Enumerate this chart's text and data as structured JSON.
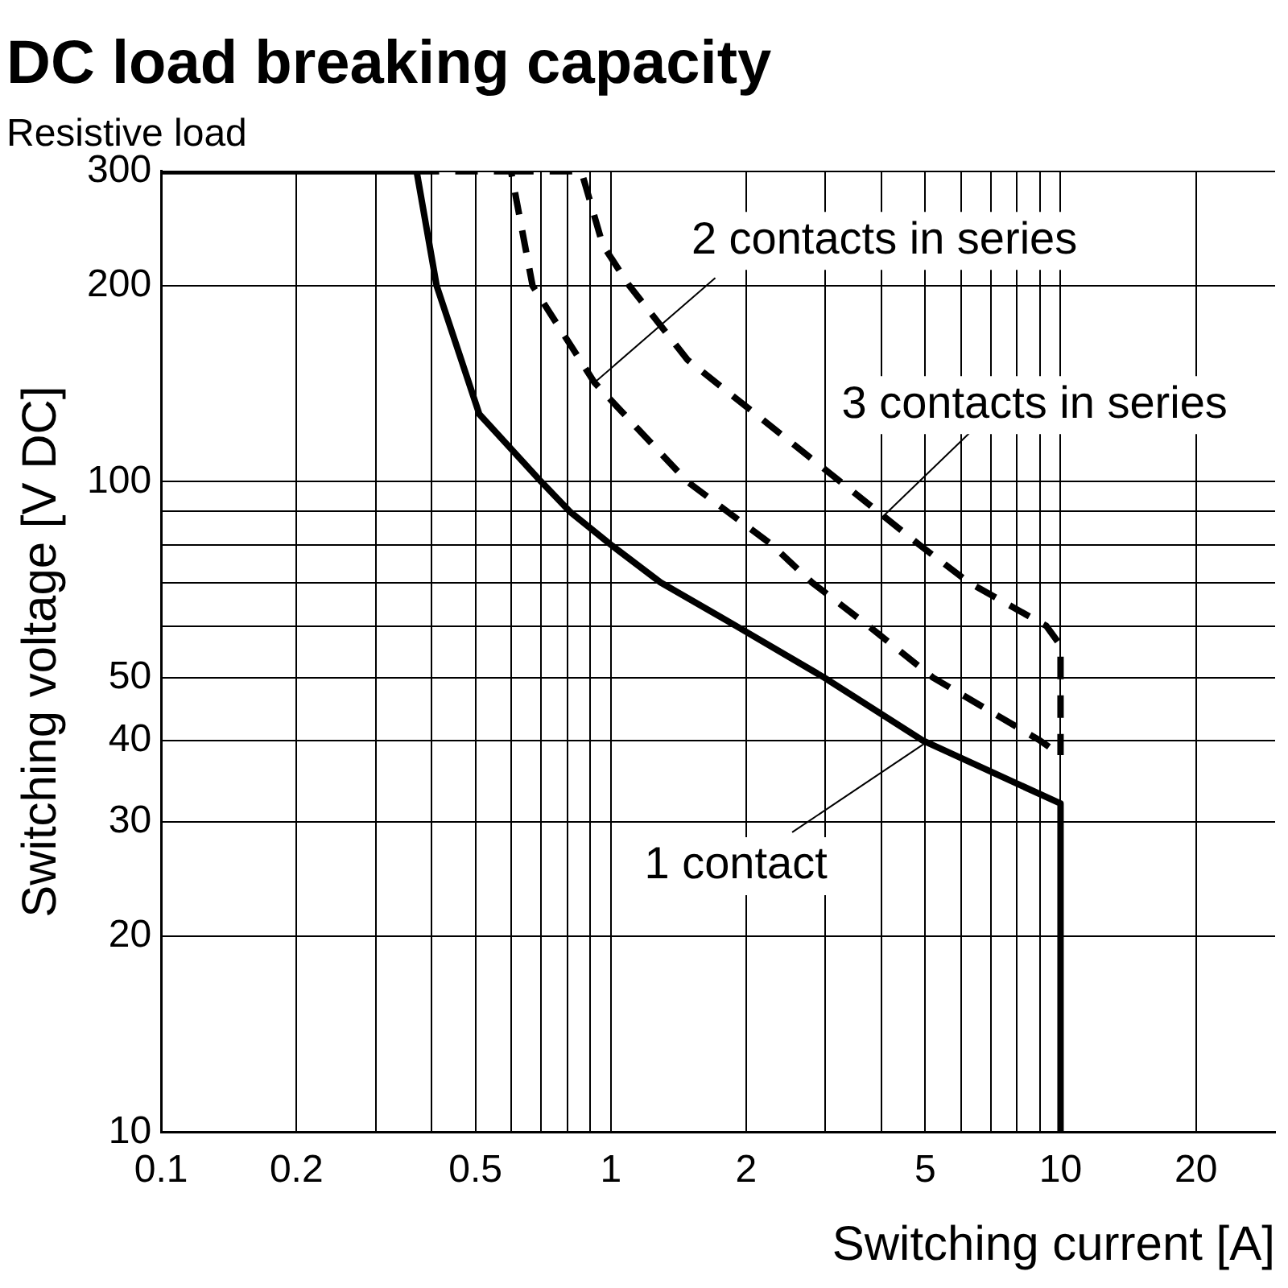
{
  "chart_data": {
    "type": "line",
    "title": "DC load breaking capacity",
    "subtitle": "Resistive load",
    "xlabel": "Switching current [A]",
    "ylabel": "Switching voltage [V DC]",
    "log": "xy",
    "grid": true,
    "legend": false,
    "marker": "none",
    "xlim": [
      0.1,
      30
    ],
    "ylim": [
      10,
      300
    ],
    "xticks": [
      0.1,
      0.2,
      {
        "value": 0.3,
        "label": null
      },
      {
        "value": 0.4,
        "label": null
      },
      0.5,
      {
        "value": 0.6,
        "label": null
      },
      {
        "value": 0.7,
        "label": null
      },
      {
        "value": 0.8,
        "label": null
      },
      {
        "value": 0.9,
        "label": null
      },
      1,
      2,
      {
        "value": 3,
        "label": null
      },
      {
        "value": 4,
        "label": null
      },
      5,
      {
        "value": 6,
        "label": null
      },
      {
        "value": 7,
        "label": null
      },
      {
        "value": 8,
        "label": null
      },
      {
        "value": 9,
        "label": null
      },
      10,
      20
    ],
    "yticks": [
      10,
      20,
      30,
      40,
      50,
      {
        "value": 60,
        "label": null
      },
      {
        "value": 70,
        "label": null
      },
      {
        "value": 80,
        "label": null
      },
      {
        "value": 90,
        "label": null
      },
      100,
      200,
      300
    ],
    "series": [
      {
        "line_style": "solid",
        "color": "#000000",
        "x": [
          0.1,
          0.37,
          0.41,
          0.51,
          0.7,
          0.81,
          1.0,
          1.29,
          1.9,
          2.98,
          4.94,
          10,
          10
        ],
        "values": [
          300,
          300,
          200,
          127,
          100,
          90,
          80,
          70,
          60,
          50,
          40,
          32,
          10
        ]
      },
      {
        "line_style": "dashed",
        "color": "#000000",
        "x": [
          0.37,
          0.6,
          0.67,
          0.92,
          1.48,
          2.28,
          2.8,
          3.74,
          5.2,
          9.0,
          10
        ],
        "values": [
          300,
          300,
          200,
          142,
          100,
          80,
          70,
          60,
          50,
          40,
          38
        ]
      },
      {
        "line_style": "dashed",
        "color": "#000000",
        "x": [
          0.6,
          0.86,
          0.96,
          1.1,
          1.48,
          3.24,
          4.85,
          6.25,
          9.3,
          10,
          10
        ],
        "values": [
          300,
          300,
          231,
          200,
          154,
          100,
          80,
          70,
          60,
          56,
          38
        ]
      }
    ],
    "annotations": [
      {
        "text": "2 contacts in series",
        "x": 0.92,
        "y": 142
      },
      {
        "text": "3 contacts in series",
        "x": 4.0,
        "y": 88
      },
      {
        "text": "1 contact",
        "x": 5.1,
        "y": 40
      }
    ]
  }
}
